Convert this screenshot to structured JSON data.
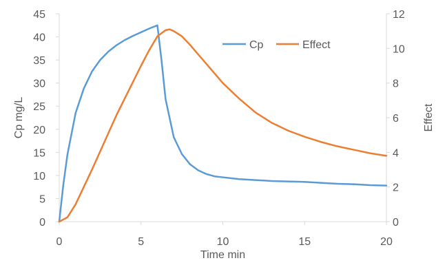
{
  "chart_data": {
    "type": "line",
    "title": "",
    "xlabel": "Time min",
    "ylabel": "Cp mg/L",
    "y2label": "Effect",
    "xlim": [
      0,
      20
    ],
    "ylim": [
      0,
      45
    ],
    "y2lim": [
      0,
      12
    ],
    "x_ticks": [
      0,
      5,
      10,
      15,
      20
    ],
    "y_ticks": [
      0,
      5,
      10,
      15,
      20,
      25,
      30,
      35,
      40,
      45
    ],
    "y2_ticks": [
      0,
      2,
      4,
      6,
      8,
      10,
      12
    ],
    "grid": false,
    "legend_position": "top-right inside",
    "series": [
      {
        "name": "Cp",
        "axis": "left",
        "color": "#5B9BD5",
        "x": [
          0,
          0.25,
          0.5,
          1,
          1.5,
          2,
          2.5,
          3,
          3.5,
          4,
          4.5,
          5,
          5.5,
          6,
          6.25,
          6.5,
          7,
          7.5,
          8,
          8.5,
          9,
          9.5,
          10,
          11,
          12,
          13,
          14,
          15,
          16,
          17,
          18,
          19,
          20
        ],
        "values": [
          0,
          8,
          14.5,
          23.5,
          28.8,
          32.5,
          35.0,
          36.8,
          38.2,
          39.3,
          40.2,
          41.0,
          41.8,
          42.5,
          35.0,
          26.5,
          18.3,
          14.6,
          12.4,
          11.1,
          10.3,
          9.8,
          9.6,
          9.2,
          9.0,
          8.8,
          8.7,
          8.6,
          8.4,
          8.2,
          8.1,
          7.9,
          7.8
        ]
      },
      {
        "name": "Effect",
        "axis": "right",
        "color": "#ED7D31",
        "x": [
          0,
          0.5,
          1,
          1.5,
          2,
          2.5,
          3,
          3.5,
          4,
          4.5,
          5,
          5.5,
          6,
          6.5,
          6.75,
          7,
          7.5,
          8,
          8.5,
          9,
          10,
          11,
          12,
          13,
          14,
          15,
          16,
          17,
          18,
          19,
          20
        ],
        "values": [
          0,
          0.25,
          1.0,
          2.0,
          3.0,
          4.05,
          5.1,
          6.15,
          7.1,
          8.05,
          9.0,
          9.9,
          10.7,
          11.05,
          11.1,
          11.0,
          10.7,
          10.2,
          9.65,
          9.1,
          8.0,
          7.1,
          6.3,
          5.7,
          5.25,
          4.9,
          4.6,
          4.35,
          4.15,
          3.95,
          3.8
        ]
      }
    ]
  }
}
